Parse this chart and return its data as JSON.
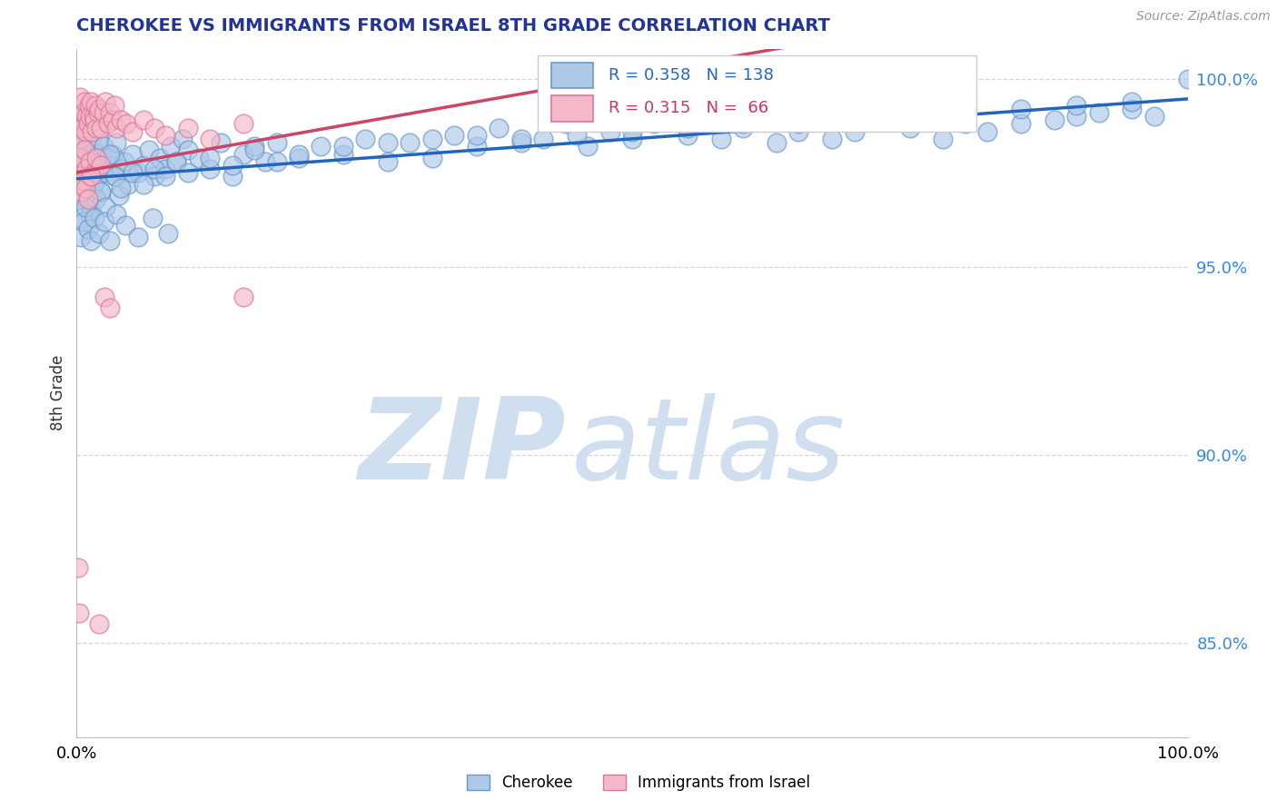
{
  "title": "CHEROKEE VS IMMIGRANTS FROM ISRAEL 8TH GRADE CORRELATION CHART",
  "source": "Source: ZipAtlas.com",
  "ylabel": "8th Grade",
  "xlim": [
    0.0,
    1.0
  ],
  "ylim": [
    0.825,
    1.008
  ],
  "yticks": [
    0.85,
    0.9,
    0.95,
    1.0
  ],
  "ytick_labels": [
    "85.0%",
    "90.0%",
    "95.0%",
    "100.0%"
  ],
  "xticks": [
    0.0,
    1.0
  ],
  "xtick_labels": [
    "0.0%",
    "100.0%"
  ],
  "legend_blue_r": "0.358",
  "legend_blue_n": "138",
  "legend_pink_r": "0.315",
  "legend_pink_n": " 66",
  "blue_color": "#aec8e8",
  "blue_edge": "#6699cc",
  "pink_color": "#f4b8c8",
  "pink_edge": "#dd7799",
  "trend_blue": "#2266bb",
  "trend_pink": "#cc4466",
  "watermark_zip": "ZIP",
  "watermark_atlas": "atlas",
  "watermark_color": "#d0dff0",
  "blue_scatter_x": [
    0.001,
    0.002,
    0.003,
    0.004,
    0.005,
    0.006,
    0.007,
    0.008,
    0.009,
    0.01,
    0.011,
    0.012,
    0.013,
    0.014,
    0.015,
    0.016,
    0.017,
    0.018,
    0.019,
    0.02,
    0.022,
    0.024,
    0.026,
    0.028,
    0.03,
    0.032,
    0.034,
    0.036,
    0.038,
    0.04,
    0.043,
    0.046,
    0.05,
    0.055,
    0.06,
    0.065,
    0.07,
    0.075,
    0.08,
    0.085,
    0.09,
    0.095,
    0.1,
    0.11,
    0.12,
    0.13,
    0.14,
    0.15,
    0.16,
    0.17,
    0.18,
    0.2,
    0.22,
    0.24,
    0.26,
    0.28,
    0.3,
    0.32,
    0.34,
    0.36,
    0.38,
    0.4,
    0.42,
    0.44,
    0.46,
    0.48,
    0.5,
    0.52,
    0.55,
    0.58,
    0.6,
    0.63,
    0.65,
    0.68,
    0.7,
    0.72,
    0.75,
    0.78,
    0.8,
    0.82,
    0.85,
    0.88,
    0.9,
    0.92,
    0.95,
    0.97,
    1.0,
    0.003,
    0.005,
    0.007,
    0.009,
    0.012,
    0.015,
    0.018,
    0.022,
    0.026,
    0.03,
    0.035,
    0.04,
    0.05,
    0.06,
    0.07,
    0.08,
    0.09,
    0.1,
    0.12,
    0.14,
    0.16,
    0.18,
    0.2,
    0.24,
    0.28,
    0.32,
    0.36,
    0.4,
    0.45,
    0.5,
    0.55,
    0.6,
    0.65,
    0.7,
    0.75,
    0.8,
    0.85,
    0.9,
    0.95,
    0.004,
    0.006,
    0.008,
    0.01,
    0.013,
    0.016,
    0.02,
    0.025,
    0.03,
    0.036,
    0.044,
    0.055,
    0.068,
    0.082
  ],
  "blue_scatter_y": [
    0.979,
    0.985,
    0.99,
    0.975,
    0.982,
    0.968,
    0.972,
    0.988,
    0.976,
    0.983,
    0.971,
    0.978,
    0.965,
    0.982,
    0.975,
    0.989,
    0.973,
    0.977,
    0.98,
    0.984,
    0.97,
    0.982,
    0.975,
    0.979,
    0.977,
    0.98,
    0.974,
    0.983,
    0.969,
    0.976,
    0.978,
    0.972,
    0.98,
    0.975,
    0.977,
    0.981,
    0.974,
    0.979,
    0.976,
    0.982,
    0.978,
    0.984,
    0.981,
    0.979,
    0.976,
    0.983,
    0.974,
    0.98,
    0.982,
    0.978,
    0.983,
    0.979,
    0.982,
    0.98,
    0.984,
    0.978,
    0.983,
    0.979,
    0.985,
    0.982,
    0.987,
    0.983,
    0.984,
    0.988,
    0.982,
    0.986,
    0.984,
    0.988,
    0.985,
    0.984,
    0.987,
    0.983,
    0.986,
    0.984,
    0.986,
    0.989,
    0.987,
    0.984,
    0.988,
    0.986,
    0.988,
    0.989,
    0.99,
    0.991,
    0.992,
    0.99,
    1.0,
    0.968,
    0.963,
    0.971,
    0.978,
    0.964,
    0.972,
    0.968,
    0.97,
    0.966,
    0.98,
    0.974,
    0.971,
    0.975,
    0.972,
    0.976,
    0.974,
    0.978,
    0.975,
    0.979,
    0.977,
    0.981,
    0.978,
    0.98,
    0.982,
    0.983,
    0.984,
    0.985,
    0.984,
    0.985,
    0.986,
    0.987,
    0.988,
    0.988,
    0.989,
    0.99,
    0.991,
    0.992,
    0.993,
    0.994,
    0.958,
    0.962,
    0.966,
    0.96,
    0.957,
    0.963,
    0.959,
    0.962,
    0.957,
    0.964,
    0.961,
    0.958,
    0.963,
    0.959
  ],
  "pink_scatter_x": [
    0.001,
    0.002,
    0.003,
    0.004,
    0.005,
    0.006,
    0.007,
    0.008,
    0.009,
    0.01,
    0.011,
    0.012,
    0.013,
    0.014,
    0.015,
    0.016,
    0.017,
    0.018,
    0.019,
    0.02,
    0.022,
    0.024,
    0.026,
    0.028,
    0.03,
    0.032,
    0.034,
    0.036,
    0.04,
    0.045,
    0.05,
    0.06,
    0.07,
    0.08,
    0.1,
    0.12,
    0.15,
    0.003,
    0.005,
    0.007,
    0.009,
    0.012,
    0.015,
    0.018,
    0.022,
    0.002,
    0.004,
    0.006,
    0.008,
    0.01,
    0.013,
    0.025,
    0.03,
    0.001,
    0.15,
    0.002,
    0.02
  ],
  "pink_scatter_y": [
    0.988,
    0.992,
    0.995,
    0.984,
    0.987,
    0.991,
    0.994,
    0.986,
    0.99,
    0.988,
    0.993,
    0.99,
    0.994,
    0.986,
    0.99,
    0.989,
    0.993,
    0.987,
    0.991,
    0.992,
    0.987,
    0.991,
    0.994,
    0.988,
    0.991,
    0.989,
    0.993,
    0.987,
    0.989,
    0.988,
    0.986,
    0.989,
    0.987,
    0.985,
    0.987,
    0.984,
    0.988,
    0.977,
    0.979,
    0.981,
    0.976,
    0.978,
    0.975,
    0.979,
    0.977,
    0.972,
    0.97,
    0.973,
    0.971,
    0.968,
    0.974,
    0.942,
    0.939,
    0.87,
    0.942,
    0.858,
    0.855
  ]
}
